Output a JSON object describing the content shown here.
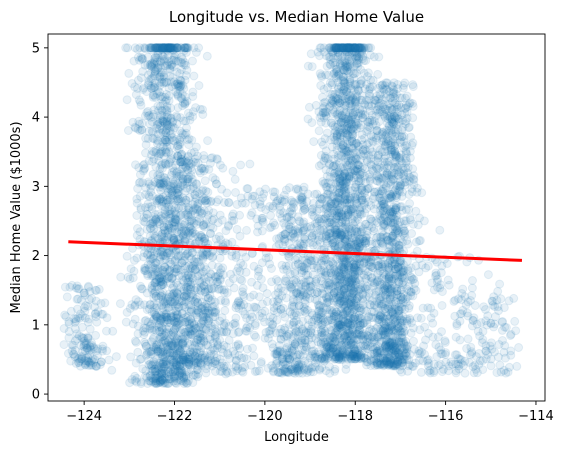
{
  "chart_data": {
    "type": "scatter",
    "title": "Longitude vs. Median Home Value",
    "xlabel": "Longitude",
    "ylabel": "Median Home Value ($1000s)",
    "xlim": [
      -124.8,
      -113.8
    ],
    "ylim": [
      -0.1,
      5.2
    ],
    "xticks": [
      -124,
      -122,
      -120,
      -118,
      -116,
      -114
    ],
    "xtick_labels": [
      "−124",
      "−122",
      "−120",
      "−118",
      "−116",
      "−114"
    ],
    "yticks": [
      0,
      1,
      2,
      3,
      4,
      5
    ],
    "ytick_labels": [
      "0",
      "1",
      "2",
      "3",
      "4",
      "5"
    ],
    "grid": false,
    "marker_color": "#1f77b4",
    "marker_alpha": 0.1,
    "series": [
      {
        "kind": "scatter",
        "color": "#1f77b4",
        "clusters": [
          {
            "x_center": -122.2,
            "x_spread": 0.35,
            "y_min": 0.15,
            "y_max": 5.0,
            "weight": 5
          },
          {
            "x_center": -121.5,
            "x_spread": 0.35,
            "y_min": 0.4,
            "y_max": 3.5,
            "weight": 2
          },
          {
            "x_center": -120.5,
            "x_spread": 0.6,
            "y_min": 0.3,
            "y_max": 3.0,
            "weight": 1
          },
          {
            "x_center": -119.2,
            "x_spread": 0.4,
            "y_min": 0.3,
            "y_max": 3.0,
            "weight": 2
          },
          {
            "x_center": -118.2,
            "x_spread": 0.3,
            "y_min": 0.5,
            "y_max": 5.0,
            "weight": 6
          },
          {
            "x_center": -117.2,
            "x_spread": 0.25,
            "y_min": 0.4,
            "y_max": 4.5,
            "weight": 4
          },
          {
            "x_center": -124.0,
            "x_spread": 0.25,
            "y_min": 0.4,
            "y_max": 1.6,
            "weight": 0.6
          },
          {
            "x_center": -116.0,
            "x_spread": 0.6,
            "y_min": 0.3,
            "y_max": 2.0,
            "weight": 0.6
          },
          {
            "x_center": -115.0,
            "x_spread": 0.3,
            "y_min": 0.3,
            "y_max": 1.5,
            "weight": 0.3
          }
        ],
        "capped_value": 5.0
      },
      {
        "kind": "line",
        "color": "#ff0000",
        "x": [
          -124.35,
          -114.31
        ],
        "y": [
          2.2,
          1.93
        ]
      }
    ]
  }
}
